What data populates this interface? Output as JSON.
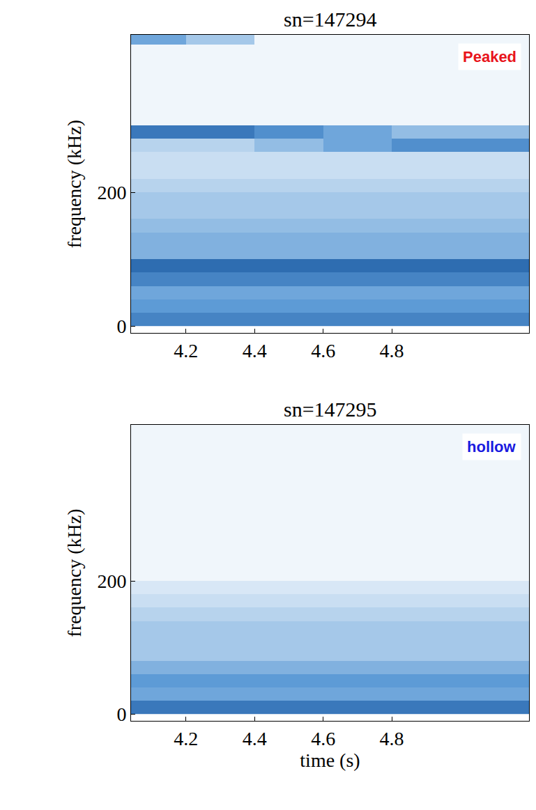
{
  "chart_data": [
    {
      "type": "heatmap",
      "title": "sn=147294",
      "ylabel": "frequency (kHz)",
      "annotations": [
        {
          "text": "Peaked",
          "color": "#e8141b"
        }
      ],
      "x": [
        4.1,
        4.3,
        4.5,
        4.7,
        4.9,
        5.1
      ],
      "y": [
        10,
        30,
        50,
        70,
        90,
        110,
        130,
        150,
        170,
        190,
        210,
        230,
        250,
        270,
        290,
        310,
        330,
        350,
        370,
        390,
        410,
        430
      ],
      "z": [
        [
          0.75,
          0.75,
          0.75,
          0.75,
          0.75,
          0.75
        ],
        [
          0.65,
          0.65,
          0.65,
          0.65,
          0.65,
          0.65
        ],
        [
          0.6,
          0.6,
          0.6,
          0.6,
          0.6,
          0.6
        ],
        [
          0.75,
          0.75,
          0.75,
          0.75,
          0.75,
          0.75
        ],
        [
          0.85,
          0.85,
          0.85,
          0.85,
          0.85,
          0.85
        ],
        [
          0.55,
          0.55,
          0.55,
          0.55,
          0.55,
          0.55
        ],
        [
          0.55,
          0.55,
          0.55,
          0.55,
          0.55,
          0.55
        ],
        [
          0.5,
          0.5,
          0.5,
          0.5,
          0.5,
          0.5
        ],
        [
          0.45,
          0.45,
          0.45,
          0.45,
          0.45,
          0.45
        ],
        [
          0.45,
          0.45,
          0.45,
          0.45,
          0.45,
          0.45
        ],
        [
          0.4,
          0.4,
          0.4,
          0.4,
          0.4,
          0.4
        ],
        [
          0.35,
          0.35,
          0.35,
          0.35,
          0.35,
          0.35
        ],
        [
          0.35,
          0.35,
          0.35,
          0.35,
          0.35,
          0.35
        ],
        [
          0.4,
          0.4,
          0.5,
          0.6,
          0.7,
          0.7
        ],
        [
          0.8,
          0.8,
          0.7,
          0.6,
          0.5,
          0.5
        ],
        [
          0.1,
          0.1,
          0.1,
          0.1,
          0.1,
          0.1
        ],
        [
          0.1,
          0.1,
          0.1,
          0.1,
          0.1,
          0.1
        ],
        [
          0.1,
          0.1,
          0.1,
          0.1,
          0.1,
          0.1
        ],
        [
          0.1,
          0.1,
          0.1,
          0.1,
          0.1,
          0.1
        ],
        [
          0.1,
          0.1,
          0.1,
          0.1,
          0.1,
          0.1
        ],
        [
          0.1,
          0.1,
          0.1,
          0.1,
          0.1,
          0.1
        ],
        [
          0.6,
          0.45,
          0.1,
          0.1,
          0.1,
          0.1
        ]
      ],
      "zlim": [
        0,
        1
      ],
      "xlim": [
        4.04,
        5.2
      ],
      "ylim": [
        -10,
        435
      ],
      "xticks": [
        4.2,
        4.4,
        4.6,
        4.8
      ],
      "yticks": [
        0,
        200
      ],
      "grid": false
    },
    {
      "type": "heatmap",
      "title": "sn=147295",
      "xlabel": "time (s)",
      "ylabel": "frequency (kHz)",
      "annotations": [
        {
          "text": "hollow",
          "color": "#1a1adf"
        }
      ],
      "x": [
        4.1,
        4.3,
        4.5,
        4.7,
        4.9,
        5.1
      ],
      "y": [
        10,
        30,
        50,
        70,
        90,
        110,
        130,
        150,
        170,
        190,
        210,
        230,
        250,
        270,
        290,
        310,
        330,
        350,
        370,
        390,
        410,
        430
      ],
      "z": [
        [
          0.8,
          0.8,
          0.8,
          0.8,
          0.8,
          0.8
        ],
        [
          0.6,
          0.6,
          0.6,
          0.6,
          0.6,
          0.6
        ],
        [
          0.65,
          0.65,
          0.65,
          0.65,
          0.65,
          0.65
        ],
        [
          0.55,
          0.55,
          0.55,
          0.55,
          0.55,
          0.55
        ],
        [
          0.45,
          0.45,
          0.45,
          0.45,
          0.45,
          0.45
        ],
        [
          0.45,
          0.45,
          0.45,
          0.45,
          0.45,
          0.45
        ],
        [
          0.45,
          0.45,
          0.45,
          0.45,
          0.45,
          0.45
        ],
        [
          0.4,
          0.4,
          0.4,
          0.4,
          0.4,
          0.4
        ],
        [
          0.35,
          0.35,
          0.35,
          0.35,
          0.35,
          0.35
        ],
        [
          0.25,
          0.25,
          0.25,
          0.25,
          0.25,
          0.25
        ],
        [
          0.1,
          0.1,
          0.1,
          0.1,
          0.1,
          0.1
        ],
        [
          0.1,
          0.1,
          0.1,
          0.1,
          0.1,
          0.1
        ],
        [
          0.1,
          0.1,
          0.1,
          0.1,
          0.1,
          0.1
        ],
        [
          0.1,
          0.1,
          0.1,
          0.1,
          0.1,
          0.1
        ],
        [
          0.1,
          0.1,
          0.1,
          0.1,
          0.1,
          0.1
        ],
        [
          0.1,
          0.1,
          0.1,
          0.1,
          0.1,
          0.1
        ],
        [
          0.1,
          0.1,
          0.1,
          0.1,
          0.1,
          0.1
        ],
        [
          0.1,
          0.1,
          0.1,
          0.1,
          0.1,
          0.1
        ],
        [
          0.1,
          0.1,
          0.1,
          0.1,
          0.1,
          0.1
        ],
        [
          0.1,
          0.1,
          0.1,
          0.1,
          0.1,
          0.1
        ],
        [
          0.1,
          0.1,
          0.1,
          0.1,
          0.1,
          0.1
        ],
        [
          0.1,
          0.1,
          0.1,
          0.1,
          0.1,
          0.1
        ]
      ],
      "zlim": [
        0,
        1
      ],
      "xlim": [
        4.04,
        5.2
      ],
      "ylim": [
        -10,
        435
      ],
      "xticks": [
        4.2,
        4.4,
        4.6,
        4.8
      ],
      "yticks": [
        0,
        200
      ],
      "grid": false
    }
  ]
}
